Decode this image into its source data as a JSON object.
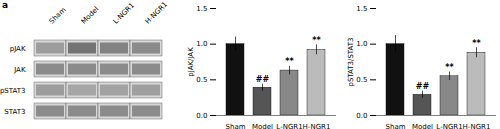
{
  "chart_data": [
    {
      "type": "heatmap",
      "title": "a",
      "x": [
        "Sham",
        "Model",
        "L-NGR1",
        "H-NGR1"
      ],
      "y": [
        "pJAK",
        "JAK",
        "pSTAT3",
        "STAT3"
      ],
      "values": [
        [
          0.55,
          0.78,
          0.7,
          0.65
        ],
        [
          0.65,
          0.65,
          0.65,
          0.65
        ],
        [
          0.55,
          0.5,
          0.52,
          0.54
        ],
        [
          0.65,
          0.65,
          0.65,
          0.65
        ]
      ]
    },
    {
      "type": "bar",
      "ylabel": "pJAK/JAK",
      "categories": [
        "Sham",
        "Model",
        "L-NGR1",
        "H-NGR1"
      ],
      "values": [
        1.0,
        0.39,
        0.63,
        0.92
      ],
      "errors": [
        0.1,
        0.05,
        0.06,
        0.07
      ],
      "colors": [
        "#111111",
        "#555555",
        "#888888",
        "#bbbbbb"
      ],
      "annotations": [
        null,
        "##",
        "**",
        "**"
      ],
      "ylim": [
        0.0,
        1.5
      ],
      "yticks": [
        {
          "value": 0.0,
          "label": "0.0"
        },
        0.5,
        {
          "value": 1.0,
          "label": "1.0"
        },
        1.5
      ]
    },
    {
      "type": "bar",
      "ylabel": "pSTAT3/STAT3",
      "categories": [
        "Sham",
        "Model",
        "L-NGR1",
        "H-NGR1"
      ],
      "values": [
        1.0,
        0.29,
        0.55,
        0.88
      ],
      "errors": [
        0.12,
        0.05,
        0.06,
        0.07
      ],
      "colors": [
        "#111111",
        "#555555",
        "#888888",
        "#bbbbbb"
      ],
      "annotations": [
        null,
        "##",
        "**",
        "**"
      ],
      "ylim": [
        0.0,
        1.5
      ],
      "yticks": [
        {
          "value": 0.0,
          "label": "0.0"
        },
        0.5,
        {
          "value": 1.0,
          "label": "1.0"
        },
        1.5
      ]
    }
  ]
}
